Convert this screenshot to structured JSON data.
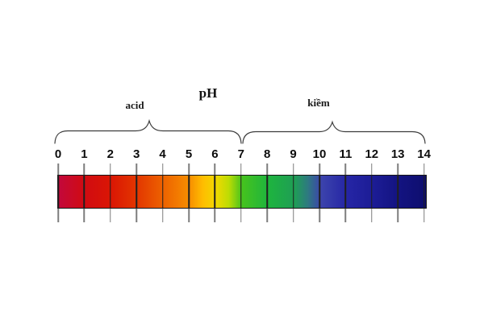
{
  "title": "pH",
  "regions": [
    {
      "label": "acid",
      "range": [
        0,
        7
      ]
    },
    {
      "label": "kiềm",
      "range": [
        7,
        14
      ]
    }
  ],
  "scale": {
    "min": 0,
    "max": 14,
    "tick_labels": [
      "0",
      "1",
      "2",
      "3",
      "4",
      "5",
      "6",
      "7",
      "8",
      "9",
      "10",
      "11",
      "12",
      "13",
      "14"
    ],
    "gradient_stops": [
      {
        "ph": 0,
        "color": "#c2083c"
      },
      {
        "ph": 1,
        "color": "#d10b12"
      },
      {
        "ph": 2,
        "color": "#da1604"
      },
      {
        "ph": 3,
        "color": "#e33600"
      },
      {
        "ph": 4,
        "color": "#ed6200"
      },
      {
        "ph": 5,
        "color": "#f78e00"
      },
      {
        "ph": 5.5,
        "color": "#ffbc00"
      },
      {
        "ph": 6,
        "color": "#f2d800"
      },
      {
        "ph": 6.5,
        "color": "#bcdc04"
      },
      {
        "ph": 7,
        "color": "#46c31d"
      },
      {
        "ph": 8,
        "color": "#1eb43e"
      },
      {
        "ph": 9,
        "color": "#1f9e55"
      },
      {
        "ph": 9.5,
        "color": "#2e7a80"
      },
      {
        "ph": 10,
        "color": "#3c44ac"
      },
      {
        "ph": 11,
        "color": "#2525a5"
      },
      {
        "ph": 12,
        "color": "#1c1c95"
      },
      {
        "ph": 13,
        "color": "#131380"
      },
      {
        "ph": 14,
        "color": "#0e0e6e"
      }
    ]
  },
  "colors": {
    "background": "#ffffff",
    "tick": "#7d7d7d",
    "tick_on_bar": "#1f1f1f",
    "brace": "#3c3c3c",
    "text": "#0d0d0d"
  }
}
